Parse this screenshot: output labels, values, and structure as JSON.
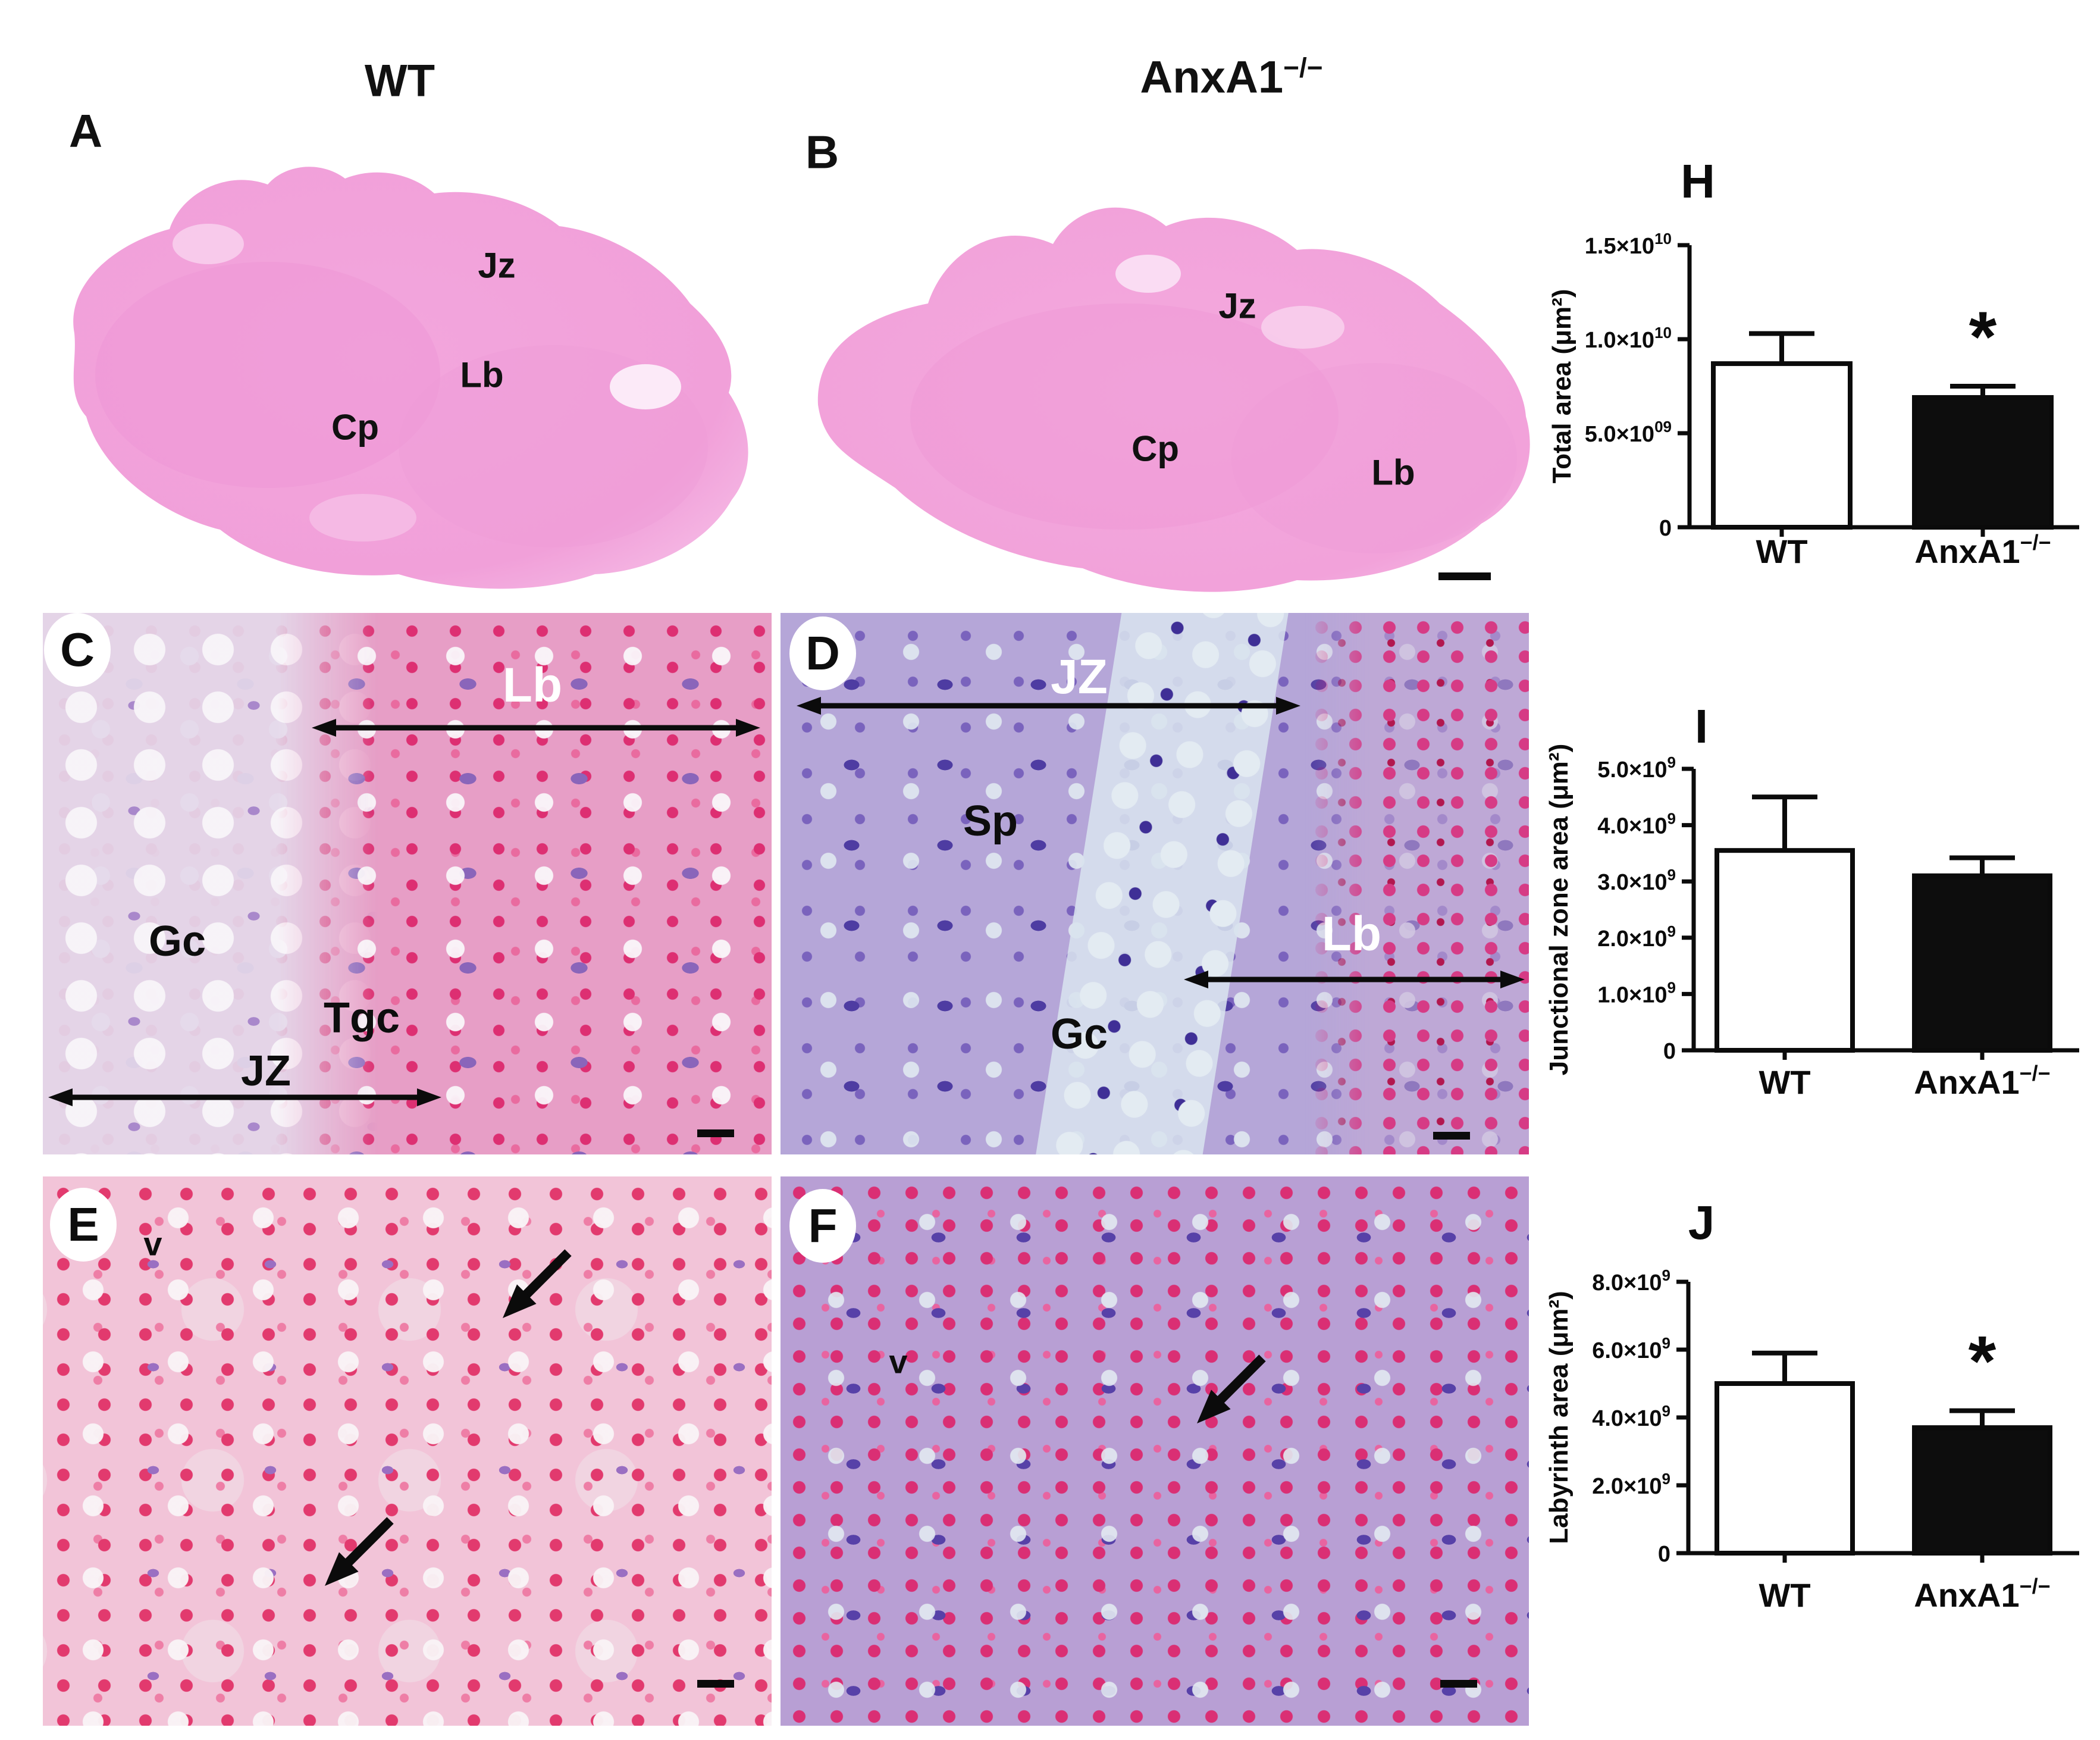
{
  "figure": {
    "column_titles": [
      {
        "base": "WT",
        "sup": ""
      },
      {
        "base": "AnxA1",
        "sup": "−/−"
      }
    ]
  },
  "panels": {
    "A": {
      "letter": "A",
      "labels": {
        "jz": "Jz",
        "lb": "Lb",
        "cp": "Cp"
      }
    },
    "B": {
      "letter": "B",
      "labels": {
        "jz": "Jz",
        "cp": "Cp",
        "lb": "Lb"
      }
    },
    "C": {
      "letter": "C",
      "labels": {
        "lb": "Lb",
        "gc": "Gc",
        "tgc": "Tgc",
        "jz": "JZ"
      }
    },
    "D": {
      "letter": "D",
      "labels": {
        "jz": "JZ",
        "sp": "Sp",
        "lb": "Lb",
        "gc": "Gc"
      }
    },
    "E": {
      "letter": "E",
      "labels": {
        "v": "v"
      }
    },
    "F": {
      "letter": "F",
      "labels": {
        "v": "v"
      }
    }
  },
  "colors": {
    "tissue_pink": "#f2a3db",
    "he_pink": "#e79ec6",
    "he_purple": "#b5a6d8",
    "labyrinth_pink": "#f2c4d8",
    "labyrinth_purple": "#b89fd4",
    "rbc_red": "#dd2f72",
    "nucleus_purple": "#5741a8",
    "bar_wt_fill": "#ffffff",
    "bar_ko_fill": "#0d0d0d",
    "annotation_black": "#111111",
    "annotation_white": "#ffffff"
  },
  "chart_data": [
    {
      "id": "H",
      "type": "bar",
      "panel_letter": "H",
      "title": "",
      "xlabel": "",
      "ylabel": "Total area (μm²)",
      "categories": [
        {
          "base": "WT",
          "sup": ""
        },
        {
          "base": "AnxA1",
          "sup": "−/−"
        }
      ],
      "values": [
        8700000000.0,
        6900000000.0
      ],
      "errors_up": [
        1600000000.0,
        600000000.0
      ],
      "significance": [
        "",
        "*"
      ],
      "bar_fills": [
        "#ffffff",
        "#0d0d0d"
      ],
      "ylim": [
        0,
        15000000000.0
      ],
      "grid": false,
      "legend": null,
      "yticks": [
        {
          "v": 0,
          "base": "0",
          "sup": ""
        },
        {
          "v": 5000000000.0,
          "base": "5.0×10",
          "sup": "09"
        },
        {
          "v": 10000000000.0,
          "base": "1.0×10",
          "sup": "10"
        },
        {
          "v": 15000000000.0,
          "base": "1.5×10",
          "sup": "10"
        }
      ]
    },
    {
      "id": "I",
      "type": "bar",
      "panel_letter": "I",
      "title": "",
      "xlabel": "",
      "ylabel": "Junctional zone area (μm²)",
      "categories": [
        {
          "base": "WT",
          "sup": ""
        },
        {
          "base": "AnxA1",
          "sup": "−/−"
        }
      ],
      "values": [
        3550000000.0,
        3100000000.0
      ],
      "errors_up": [
        950000000.0,
        320000000.0
      ],
      "significance": [
        "",
        ""
      ],
      "bar_fills": [
        "#ffffff",
        "#0d0d0d"
      ],
      "ylim": [
        0,
        5000000000.0
      ],
      "grid": false,
      "legend": null,
      "yticks": [
        {
          "v": 0,
          "base": "0",
          "sup": ""
        },
        {
          "v": 1000000000.0,
          "base": "1.0×10",
          "sup": "9"
        },
        {
          "v": 2000000000.0,
          "base": "2.0×10",
          "sup": "9"
        },
        {
          "v": 3000000000.0,
          "base": "3.0×10",
          "sup": "9"
        },
        {
          "v": 4000000000.0,
          "base": "4.0×10",
          "sup": "9"
        },
        {
          "v": 5000000000.0,
          "base": "5.0×10",
          "sup": "9"
        }
      ]
    },
    {
      "id": "J",
      "type": "bar",
      "panel_letter": "J",
      "title": "",
      "xlabel": "",
      "ylabel": "Labyrinth area (μm²)",
      "categories": [
        {
          "base": "WT",
          "sup": ""
        },
        {
          "base": "AnxA1",
          "sup": "−/−"
        }
      ],
      "values": [
        5000000000.0,
        3700000000.0
      ],
      "errors_up": [
        900000000.0,
        500000000.0
      ],
      "significance": [
        "",
        "*"
      ],
      "bar_fills": [
        "#ffffff",
        "#0d0d0d"
      ],
      "ylim": [
        0,
        8000000000.0
      ],
      "grid": false,
      "legend": null,
      "yticks": [
        {
          "v": 0,
          "base": "0",
          "sup": ""
        },
        {
          "v": 2000000000.0,
          "base": "2.0×10",
          "sup": "9"
        },
        {
          "v": 4000000000.0,
          "base": "4.0×10",
          "sup": "9"
        },
        {
          "v": 6000000000.0,
          "base": "6.0×10",
          "sup": "9"
        },
        {
          "v": 8000000000.0,
          "base": "8.0×10",
          "sup": "9"
        }
      ]
    }
  ]
}
